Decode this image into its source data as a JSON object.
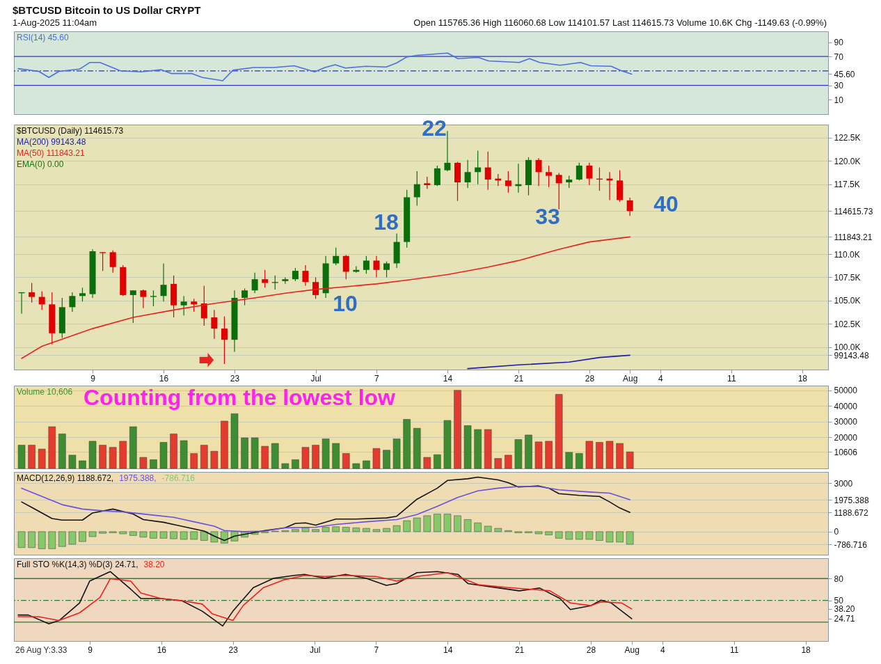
{
  "chart_data": [
    {
      "type": "other",
      "title": "$BTCUSD Bitcoin to US Dollar CRYPT",
      "subtitle": "1-Aug-2025 11:04am",
      "annotations": [
        "Open 115765.36 High 116060.68 Low 114101.57 Last 114615.73 Volume 10.6K Chg -1149.63 (-0.99%)"
      ]
    },
    {
      "type": "line",
      "legend": "top left",
      "tick_labels": "y",
      "xlim": [
        "2025-06-01T14:00",
        "2025-08-20T05:00"
      ],
      "ylim": [
        -10,
        105
      ],
      "yticks": [
        10,
        30,
        {
          "value": 45.6,
          "label": "45.60"
        },
        70,
        90
      ],
      "ref_lines": [
        {
          "axis": "y",
          "value": 70,
          "color": "#3232c8"
        },
        {
          "axis": "y",
          "value": 30,
          "color": "#3232c8"
        },
        {
          "axis": "y",
          "value": 50,
          "color": "#3232c8",
          "line_style": "dashed"
        }
      ],
      "series": [
        {
          "name": "RSI(14) 45.60",
          "color": "#4a6fe0",
          "x": [
            "2025-06-02",
            "2025-06-04",
            "2025-06-05",
            "2025-06-06",
            "2025-06-08",
            "2025-06-09",
            "2025-06-10",
            "2025-06-12",
            "2025-06-14",
            "2025-06-16",
            "2025-06-17",
            "2025-06-19",
            "2025-06-20",
            "2025-06-22",
            "2025-06-23",
            "2025-06-25",
            "2025-06-27",
            "2025-06-29",
            "2025-07-01",
            "2025-07-02",
            "2025-07-03",
            "2025-07-04",
            "2025-07-06",
            "2025-07-08",
            "2025-07-09",
            "2025-07-10",
            "2025-07-11",
            "2025-07-14",
            "2025-07-15",
            "2025-07-17",
            "2025-07-18",
            "2025-07-21",
            "2025-07-22",
            "2025-07-23",
            "2025-07-25",
            "2025-07-27",
            "2025-07-28",
            "2025-07-30",
            "2025-07-31",
            "2025-08-01"
          ],
          "values": [
            53.2,
            49.4,
            41.0,
            49.4,
            52.5,
            61.7,
            61.7,
            50.2,
            48.7,
            51.7,
            46.4,
            46.4,
            41.0,
            36.4,
            51.0,
            54.8,
            54.8,
            57.1,
            48.7,
            54.8,
            58.7,
            54.0,
            56.4,
            55.5,
            61.0,
            69.4,
            71.7,
            74.8,
            67.1,
            68.7,
            64.0,
            61.7,
            67.1,
            61.7,
            57.9,
            61.7,
            57.1,
            56.4,
            50.2,
            45.6
          ]
        }
      ]
    },
    {
      "type": "candlestick",
      "title": "$BTCUSD (Daily) 114615.73",
      "legend": "top left",
      "grid": "y",
      "xlim": [
        "2025-06-01T14:00",
        "2025-08-20T05:00"
      ],
      "xticks": [
        {
          "value": "2025-06-09",
          "label": "9"
        },
        {
          "value": "2025-06-16",
          "label": "16"
        },
        {
          "value": "2025-06-23",
          "label": "23"
        },
        {
          "value": "2025-07-01",
          "label": "Jul"
        },
        {
          "value": "2025-07-07",
          "label": "7"
        },
        {
          "value": "2025-07-14",
          "label": "14"
        },
        {
          "value": "2025-07-21",
          "label": "21"
        },
        {
          "value": "2025-07-28",
          "label": "28"
        },
        {
          "value": "2025-08-01",
          "label": "Aug"
        },
        {
          "value": "2025-08-04",
          "label": "4"
        },
        {
          "value": "2025-08-11",
          "label": "11"
        },
        {
          "value": "2025-08-18",
          "label": "18"
        }
      ],
      "ylim": [
        97600,
        123900
      ],
      "yticks": [
        {
          "value": 99143.48,
          "label": "99143.48"
        },
        {
          "value": 100000,
          "label": "100.0K"
        },
        {
          "value": 102500,
          "label": "102.5K"
        },
        {
          "value": 105000,
          "label": "105.0K"
        },
        {
          "value": 107500,
          "label": "107.5K"
        },
        {
          "value": 110000,
          "label": "110.0K"
        },
        {
          "value": 111843.21,
          "label": "111843.21"
        },
        {
          "value": 114615.73,
          "label": "114615.73"
        },
        {
          "value": 117500,
          "label": "117.5K"
        },
        {
          "value": 120000,
          "label": "120.0K"
        },
        {
          "value": 122500,
          "label": "122.5K"
        }
      ],
      "x": [
        "2025-06-02",
        "2025-06-03",
        "2025-06-04",
        "2025-06-05",
        "2025-06-06",
        "2025-06-07",
        "2025-06-08",
        "2025-06-09",
        "2025-06-10",
        "2025-06-11",
        "2025-06-12",
        "2025-06-13",
        "2025-06-14",
        "2025-06-15",
        "2025-06-16",
        "2025-06-17",
        "2025-06-18",
        "2025-06-19",
        "2025-06-20",
        "2025-06-21",
        "2025-06-22",
        "2025-06-23",
        "2025-06-24",
        "2025-06-25",
        "2025-06-26",
        "2025-06-27",
        "2025-06-28",
        "2025-06-29",
        "2025-06-30",
        "2025-07-01",
        "2025-07-02",
        "2025-07-03",
        "2025-07-04",
        "2025-07-05",
        "2025-07-06",
        "2025-07-07",
        "2025-07-08",
        "2025-07-09",
        "2025-07-10",
        "2025-07-11",
        "2025-07-12",
        "2025-07-13",
        "2025-07-14",
        "2025-07-15",
        "2025-07-16",
        "2025-07-17",
        "2025-07-18",
        "2025-07-19",
        "2025-07-20",
        "2025-07-21",
        "2025-07-22",
        "2025-07-23",
        "2025-07-24",
        "2025-07-25",
        "2025-07-26",
        "2025-07-27",
        "2025-07-28",
        "2025-07-29",
        "2025-07-30",
        "2025-07-31",
        "2025-08-01"
      ],
      "ohlc": [
        [
          105800,
          105900,
          103600,
          105900
        ],
        [
          105900,
          106900,
          104800,
          105400
        ],
        [
          105400,
          106000,
          104000,
          104600
        ],
        [
          104600,
          105900,
          100300,
          101500
        ],
        [
          101500,
          105300,
          101000,
          104300
        ],
        [
          104300,
          105900,
          103800,
          105500
        ],
        [
          105500,
          106400,
          104900,
          105800
        ],
        [
          105700,
          110500,
          105300,
          110300
        ],
        [
          110200,
          110200,
          108200,
          110100
        ],
        [
          110200,
          110400,
          108000,
          108600
        ],
        [
          108600,
          108800,
          105500,
          105600
        ],
        [
          105600,
          106100,
          102600,
          106100
        ],
        [
          106100,
          106200,
          104200,
          105400
        ],
        [
          105400,
          106100,
          104400,
          105500
        ],
        [
          105500,
          109000,
          104900,
          106700
        ],
        [
          106800,
          107700,
          103200,
          104500
        ],
        [
          104500,
          105500,
          103400,
          104900
        ],
        [
          104900,
          105200,
          103800,
          104600
        ],
        [
          104700,
          106600,
          102300,
          103100
        ],
        [
          103200,
          104000,
          100900,
          102000
        ],
        [
          102000,
          103300,
          98200,
          100800
        ],
        [
          100800,
          106100,
          99500,
          105300
        ],
        [
          105300,
          106300,
          104500,
          106100
        ],
        [
          106100,
          108000,
          105800,
          107300
        ],
        [
          107300,
          108300,
          106400,
          106900
        ],
        [
          106900,
          107700,
          106200,
          107000
        ],
        [
          107100,
          107500,
          106800,
          107300
        ],
        [
          107300,
          108500,
          107100,
          108200
        ],
        [
          108200,
          108800,
          106600,
          107000
        ],
        [
          107000,
          107500,
          105200,
          105600
        ],
        [
          105800,
          109800,
          105300,
          109000
        ],
        [
          109000,
          110700,
          108800,
          109800
        ],
        [
          109800,
          109900,
          107300,
          108100
        ],
        [
          108100,
          108700,
          108000,
          108300
        ],
        [
          108300,
          109800,
          107900,
          109300
        ],
        [
          109300,
          109800,
          107500,
          108300
        ],
        [
          108300,
          109200,
          107500,
          109000
        ],
        [
          109000,
          112200,
          108500,
          111300
        ],
        [
          111300,
          116900,
          110700,
          116100
        ],
        [
          116100,
          118900,
          115200,
          117500
        ],
        [
          117600,
          118300,
          117000,
          117400
        ],
        [
          117400,
          119500,
          117300,
          119200
        ],
        [
          119000,
          123200,
          118900,
          119800
        ],
        [
          119800,
          119900,
          115700,
          117700
        ],
        [
          117700,
          120100,
          117100,
          118800
        ],
        [
          118800,
          121100,
          117500,
          119300
        ],
        [
          119300,
          121000,
          116900,
          118000
        ],
        [
          118100,
          118600,
          117300,
          117900
        ],
        [
          117900,
          118900,
          116600,
          117300
        ],
        [
          117300,
          119700,
          116600,
          117500
        ],
        [
          117400,
          120400,
          116300,
          120100
        ],
        [
          120100,
          120300,
          117300,
          118800
        ],
        [
          118800,
          119500,
          117200,
          118400
        ],
        [
          118500,
          118700,
          114800,
          117600
        ],
        [
          117700,
          118400,
          117100,
          118000
        ],
        [
          118000,
          119800,
          117900,
          119500
        ],
        [
          119500,
          119800,
          117400,
          118100
        ],
        [
          118100,
          119300,
          116800,
          118000
        ],
        [
          118100,
          118800,
          115800,
          117900
        ],
        [
          117900,
          119000,
          115600,
          115800
        ],
        [
          115765.36,
          116060.68,
          114101.57,
          114615.73
        ]
      ],
      "colors": [
        "#0b6e0b",
        "#e00000",
        "#e00000",
        "#e00000",
        "#0b6e0b",
        "#0b6e0b",
        "#0b6e0b",
        "#0b6e0b",
        "#e00000",
        "#e00000",
        "#e00000",
        "#0b6e0b",
        "#e00000",
        "#0b6e0b",
        "#0b6e0b",
        "#e00000",
        "#0b6e0b",
        "#e00000",
        "#e00000",
        "#e00000",
        "#e00000",
        "#0b6e0b",
        "#0b6e0b",
        "#0b6e0b",
        "#e00000",
        "#0b6e0b",
        "#0b6e0b",
        "#0b6e0b",
        "#e00000",
        "#e00000",
        "#0b6e0b",
        "#0b6e0b",
        "#e00000",
        "#0b6e0b",
        "#0b6e0b",
        "#e00000",
        "#0b6e0b",
        "#0b6e0b",
        "#0b6e0b",
        "#0b6e0b",
        "#e00000",
        "#0b6e0b",
        "#0b6e0b",
        "#e00000",
        "#0b6e0b",
        "#0b6e0b",
        "#e00000",
        "#e00000",
        "#e00000",
        "#0b6e0b",
        "#0b6e0b",
        "#e00000",
        "#e00000",
        "#e00000",
        "#0b6e0b",
        "#0b6e0b",
        "#e00000",
        "#e00000",
        "#e00000",
        "#e00000",
        "#e00000"
      ],
      "series": [
        {
          "type": "line",
          "name": "MA(200) 99143.48",
          "color": "#1c1ca8",
          "x": [
            "2025-07-16",
            "2025-07-21",
            "2025-07-26",
            "2025-07-29",
            "2025-08-01"
          ],
          "values": [
            97700,
            98100,
            98400,
            98900,
            99143.48
          ]
        },
        {
          "type": "line",
          "name": "MA(50) 111843.21",
          "color": "#e8231d",
          "x": [
            "2025-06-02",
            "2025-06-04",
            "2025-06-09",
            "2025-06-13",
            "2025-06-17",
            "2025-06-21",
            "2025-06-25",
            "2025-06-28",
            "2025-07-01",
            "2025-07-07",
            "2025-07-10",
            "2025-07-14",
            "2025-07-18",
            "2025-07-21",
            "2025-07-25",
            "2025-07-28",
            "2025-08-01"
          ],
          "values": [
            98800,
            100100,
            102000,
            103200,
            104000,
            104700,
            105300,
            105800,
            106200,
            106800,
            107200,
            107800,
            108600,
            109300,
            110500,
            111300,
            111843.21
          ]
        },
        {
          "type": "line",
          "name": "EMA(0) 0.00",
          "color": "#0b7a0b",
          "values": [
            null,
            null,
            null,
            null,
            null,
            null,
            null,
            null,
            null,
            null,
            null,
            null,
            null,
            null,
            null,
            null,
            null,
            null,
            null,
            null,
            null,
            null,
            null,
            null,
            null,
            null,
            null,
            null,
            null,
            null,
            null,
            null,
            null,
            null,
            null,
            null,
            null,
            null,
            null,
            null,
            null,
            null,
            null,
            null,
            null,
            null,
            null,
            null,
            null,
            null,
            null,
            null,
            null,
            null,
            null,
            null,
            null,
            null,
            null,
            null,
            null
          ]
        }
      ],
      "annotations": [
        "10",
        "18",
        "22",
        "33",
        "40"
      ]
    },
    {
      "type": "bar",
      "legend": "top left",
      "grid": "y",
      "tick_labels": "y",
      "xlim": [
        "2025-06-01T14:00",
        "2025-08-20T05:00"
      ],
      "ylim": [
        0,
        53000
      ],
      "yticks": [
        {
          "value": 10606,
          "label": "10606"
        },
        20000,
        30000,
        40000,
        50000
      ],
      "annotations": [
        "Counting from the lowest low"
      ],
      "series": [
        {
          "name": "Volume 10,606",
          "color": "#3f8d32",
          "x": [
            "2025-06-02",
            "2025-06-03",
            "2025-06-04",
            "2025-06-05",
            "2025-06-06",
            "2025-06-07",
            "2025-06-08",
            "2025-06-09",
            "2025-06-10",
            "2025-06-11",
            "2025-06-12",
            "2025-06-13",
            "2025-06-14",
            "2025-06-15",
            "2025-06-16",
            "2025-06-17",
            "2025-06-18",
            "2025-06-19",
            "2025-06-20",
            "2025-06-21",
            "2025-06-22",
            "2025-06-23",
            "2025-06-24",
            "2025-06-25",
            "2025-06-26",
            "2025-06-27",
            "2025-06-28",
            "2025-06-29",
            "2025-06-30",
            "2025-07-01",
            "2025-07-02",
            "2025-07-03",
            "2025-07-04",
            "2025-07-05",
            "2025-07-06",
            "2025-07-07",
            "2025-07-08",
            "2025-07-09",
            "2025-07-10",
            "2025-07-11",
            "2025-07-12",
            "2025-07-13",
            "2025-07-14",
            "2025-07-15",
            "2025-07-16",
            "2025-07-17",
            "2025-07-18",
            "2025-07-19",
            "2025-07-20",
            "2025-07-21",
            "2025-07-22",
            "2025-07-23",
            "2025-07-24",
            "2025-07-25",
            "2025-07-26",
            "2025-07-27",
            "2025-07-28",
            "2025-07-29",
            "2025-07-30",
            "2025-07-31",
            "2025-08-01"
          ],
          "values": [
            14900,
            14900,
            12400,
            26700,
            22100,
            8500,
            4900,
            17400,
            14900,
            13500,
            17400,
            26700,
            7100,
            5600,
            16700,
            22100,
            17800,
            9600,
            14900,
            11000,
            30300,
            35000,
            19600,
            19600,
            14200,
            16000,
            3100,
            5600,
            13500,
            14900,
            18900,
            16000,
            9600,
            3100,
            4900,
            12800,
            11700,
            18900,
            31400,
            25700,
            7100,
            8800,
            30700,
            50000,
            27400,
            24900,
            24900,
            6400,
            8500,
            18500,
            21400,
            17000,
            17400,
            47400,
            10300,
            9600,
            17400,
            16700,
            17400,
            16000,
            10606
          ],
          "colors": [
            "#3f8d32",
            "#e33b2e",
            "#e33b2e",
            "#e33b2e",
            "#3f8d32",
            "#3f8d32",
            "#3f8d32",
            "#3f8d32",
            "#e33b2e",
            "#e33b2e",
            "#e33b2e",
            "#3f8d32",
            "#e33b2e",
            "#3f8d32",
            "#3f8d32",
            "#e33b2e",
            "#3f8d32",
            "#e33b2e",
            "#e33b2e",
            "#e33b2e",
            "#e33b2e",
            "#3f8d32",
            "#3f8d32",
            "#3f8d32",
            "#e33b2e",
            "#3f8d32",
            "#3f8d32",
            "#3f8d32",
            "#e33b2e",
            "#e33b2e",
            "#3f8d32",
            "#3f8d32",
            "#e33b2e",
            "#3f8d32",
            "#3f8d32",
            "#e33b2e",
            "#3f8d32",
            "#3f8d32",
            "#3f8d32",
            "#3f8d32",
            "#e33b2e",
            "#3f8d32",
            "#3f8d32",
            "#e33b2e",
            "#3f8d32",
            "#3f8d32",
            "#e33b2e",
            "#e33b2e",
            "#e33b2e",
            "#3f8d32",
            "#3f8d32",
            "#e33b2e",
            "#e33b2e",
            "#e33b2e",
            "#3f8d32",
            "#3f8d32",
            "#e33b2e",
            "#e33b2e",
            "#e33b2e",
            "#e33b2e",
            "#e33b2e"
          ]
        }
      ]
    },
    {
      "type": "line",
      "legend": "top left",
      "grid": "y",
      "tick_labels": "y",
      "xlim": [
        "2025-06-01T14:00",
        "2025-08-20T05:00"
      ],
      "ylim": [
        -1430,
        3700
      ],
      "yticks": [
        {
          "value": -786.716,
          "label": "-786.716"
        },
        0,
        {
          "value": 1188.672,
          "label": "1188.672"
        },
        {
          "value": 1975.388,
          "label": "1975.388"
        },
        3000
      ],
      "series": [
        {
          "name": "MACD(12,26,9) 1188.672,",
          "color": "#111111",
          "x": [
            "2025-06-02",
            "2025-06-03",
            "2025-06-05",
            "2025-06-06",
            "2025-06-08",
            "2025-06-09",
            "2025-06-11",
            "2025-06-13",
            "2025-06-14",
            "2025-06-16",
            "2025-06-18",
            "2025-06-20",
            "2025-06-21",
            "2025-06-22",
            "2025-06-23",
            "2025-06-26",
            "2025-06-28",
            "2025-06-29",
            "2025-06-30",
            "2025-07-01",
            "2025-07-03",
            "2025-07-05",
            "2025-07-08",
            "2025-07-09",
            "2025-07-11",
            "2025-07-13",
            "2025-07-14",
            "2025-07-16",
            "2025-07-17",
            "2025-07-19",
            "2025-07-20",
            "2025-07-21",
            "2025-07-23",
            "2025-07-24",
            "2025-07-25",
            "2025-07-27",
            "2025-07-29",
            "2025-07-30",
            "2025-07-31",
            "2025-08-01"
          ],
          "values": [
            1842,
            1500,
            815,
            714,
            714,
            1158,
            1398,
            1090,
            748,
            579,
            304,
            34,
            -275,
            -549,
            -275,
            68,
            237,
            511,
            545,
            406,
            782,
            782,
            849,
            955,
            2011,
            2691,
            3169,
            3274,
            3376,
            3206,
            3033,
            2763,
            2831,
            2691,
            2353,
            2248,
            2180,
            1842,
            1466,
            1188.672
          ]
        },
        {
          "name": "1975.388,",
          "color": "#6a4fe0",
          "x": [
            "2025-06-02",
            "2025-06-04",
            "2025-06-06",
            "2025-06-08",
            "2025-06-10",
            "2025-06-12",
            "2025-06-15",
            "2025-06-17",
            "2025-06-19",
            "2025-06-21",
            "2025-06-22",
            "2025-06-24",
            "2025-06-26",
            "2025-06-28",
            "2025-07-01",
            "2025-07-03",
            "2025-07-06",
            "2025-07-09",
            "2025-07-11",
            "2025-07-13",
            "2025-07-15",
            "2025-07-17",
            "2025-07-19",
            "2025-07-21",
            "2025-07-23",
            "2025-07-25",
            "2025-07-28",
            "2025-07-30",
            "2025-07-31",
            "2025-08-01"
          ],
          "values": [
            2691,
            2180,
            1669,
            1398,
            1293,
            1225,
            1022,
            887,
            613,
            338,
            68,
            0,
            34,
            237,
            270,
            443,
            613,
            748,
            1056,
            1567,
            2112,
            2522,
            2691,
            2797,
            2797,
            2590,
            2455,
            2387,
            2180,
            1975.388
          ]
        },
        {
          "type": "bar",
          "name": "-786.716",
          "color": "#86c86a",
          "x": [
            "2025-06-02",
            "2025-06-03",
            "2025-06-04",
            "2025-06-05",
            "2025-06-06",
            "2025-06-07",
            "2025-06-08",
            "2025-06-09",
            "2025-06-10",
            "2025-06-11",
            "2025-06-12",
            "2025-06-13",
            "2025-06-14",
            "2025-06-15",
            "2025-06-16",
            "2025-06-17",
            "2025-06-18",
            "2025-06-19",
            "2025-06-20",
            "2025-06-21",
            "2025-06-22",
            "2025-06-23",
            "2025-06-24",
            "2025-06-25",
            "2025-06-26",
            "2025-06-27",
            "2025-06-28",
            "2025-06-29",
            "2025-06-30",
            "2025-07-01",
            "2025-07-02",
            "2025-07-03",
            "2025-07-04",
            "2025-07-05",
            "2025-07-06",
            "2025-07-07",
            "2025-07-08",
            "2025-07-09",
            "2025-07-10",
            "2025-07-11",
            "2025-07-12",
            "2025-07-13",
            "2025-07-14",
            "2025-07-15",
            "2025-07-16",
            "2025-07-17",
            "2025-07-18",
            "2025-07-19",
            "2025-07-20",
            "2025-07-21",
            "2025-07-22",
            "2025-07-23",
            "2025-07-24",
            "2025-07-25",
            "2025-07-26",
            "2025-07-27",
            "2025-07-28",
            "2025-07-29",
            "2025-07-30",
            "2025-07-31",
            "2025-08-01"
          ],
          "values": [
            -991,
            -991,
            -1059,
            -1059,
            -922,
            -786,
            -616,
            -309,
            -104,
            -70,
            -138,
            -240,
            -343,
            -411,
            -411,
            -445,
            -479,
            -479,
            -547,
            -650,
            -718,
            -582,
            -343,
            -172,
            -70,
            33,
            67,
            135,
            237,
            135,
            271,
            305,
            271,
            237,
            203,
            135,
            203,
            374,
            681,
            851,
            988,
            1090,
            1090,
            988,
            749,
            544,
            340,
            203,
            67,
            -70,
            -70,
            -138,
            -206,
            -411,
            -479,
            -479,
            -479,
            -547,
            -650,
            -650,
            -786.716
          ]
        }
      ]
    },
    {
      "type": "line",
      "legend": "top left",
      "xlim": [
        "2025-06-01T14:00",
        "2025-08-20T05:00"
      ],
      "xticks": [
        {
          "value": "2025-06-09",
          "label": "9"
        },
        {
          "value": "2025-06-16",
          "label": "16"
        },
        {
          "value": "2025-06-23",
          "label": "23"
        },
        {
          "value": "2025-07-01",
          "label": "Jul"
        },
        {
          "value": "2025-07-07",
          "label": "7"
        },
        {
          "value": "2025-07-14",
          "label": "14"
        },
        {
          "value": "2025-07-21",
          "label": "21"
        },
        {
          "value": "2025-07-28",
          "label": "28"
        },
        {
          "value": "2025-08-01",
          "label": "Aug"
        },
        {
          "value": "2025-08-04",
          "label": "4"
        },
        {
          "value": "2025-08-11",
          "label": "11"
        },
        {
          "value": "2025-08-18",
          "label": "18"
        }
      ],
      "ylim": [
        -6,
        108
      ],
      "yticks": [
        {
          "value": 24.71,
          "label": "24.71"
        },
        {
          "value": 38.2,
          "label": "38.20"
        },
        50,
        80
      ],
      "ref_lines": [
        {
          "axis": "y",
          "value": 80,
          "color": "#2e7d32"
        },
        {
          "axis": "y",
          "value": 20,
          "color": "#2e7d32"
        },
        {
          "axis": "y",
          "value": 50,
          "color": "#2e7d32",
          "line_style": "dashed"
        }
      ],
      "annotations": [
        "26 Aug Y:3.33"
      ],
      "series": [
        {
          "name": "Full STO %K(14,3) %D(3) 24.71,",
          "color": "#111111",
          "x": [
            "2025-06-02",
            "2025-06-03",
            "2025-06-05",
            "2025-06-06",
            "2025-06-08",
            "2025-06-09",
            "2025-06-11",
            "2025-06-13",
            "2025-06-14",
            "2025-06-16",
            "2025-06-18",
            "2025-06-20",
            "2025-06-22",
            "2025-06-23",
            "2025-06-25",
            "2025-06-27",
            "2025-06-29",
            "2025-06-30",
            "2025-07-02",
            "2025-07-04",
            "2025-07-06",
            "2025-07-08",
            "2025-07-09",
            "2025-07-11",
            "2025-07-13",
            "2025-07-15",
            "2025-07-16",
            "2025-07-18",
            "2025-07-21",
            "2025-07-23",
            "2025-07-25",
            "2025-07-26",
            "2025-07-28",
            "2025-07-29",
            "2025-07-30",
            "2025-08-01"
          ],
          "values": [
            29.8,
            29.8,
            17.7,
            22.2,
            46.4,
            76.7,
            89.6,
            65.4,
            52.5,
            52.5,
            49.5,
            35.1,
            14.7,
            35.1,
            67.6,
            80.5,
            84.3,
            85.8,
            80.5,
            85.8,
            80.5,
            70.7,
            73.0,
            88.1,
            89.6,
            85.8,
            73.0,
            69.1,
            63.1,
            66.9,
            52.5,
            37.3,
            42.7,
            50.3,
            46.4,
            24.71
          ]
        },
        {
          "name": "38.20",
          "color": "#e8231d",
          "x": [
            "2025-06-02",
            "2025-06-04",
            "2025-06-06",
            "2025-06-08",
            "2025-06-10",
            "2025-06-11",
            "2025-06-13",
            "2025-06-14",
            "2025-06-16",
            "2025-06-18",
            "2025-06-20",
            "2025-06-21",
            "2025-06-23",
            "2025-06-24",
            "2025-06-26",
            "2025-06-28",
            "2025-06-30",
            "2025-07-02",
            "2025-07-04",
            "2025-07-07",
            "2025-07-09",
            "2025-07-11",
            "2025-07-14",
            "2025-07-15",
            "2025-07-17",
            "2025-07-20",
            "2025-07-22",
            "2025-07-24",
            "2025-07-26",
            "2025-07-28",
            "2025-07-29",
            "2025-07-31",
            "2025-08-01"
          ],
          "values": [
            27.5,
            27.5,
            22.2,
            32.8,
            54.0,
            79.7,
            76.7,
            60.1,
            52.5,
            49.5,
            44.9,
            31.3,
            22.2,
            42.7,
            67.6,
            78.2,
            84.3,
            82.8,
            84.3,
            82.8,
            76.7,
            82.8,
            88.1,
            82.8,
            71.5,
            67.6,
            65.4,
            63.1,
            46.4,
            42.7,
            47.9,
            46.4,
            38.2
          ]
        }
      ]
    }
  ]
}
